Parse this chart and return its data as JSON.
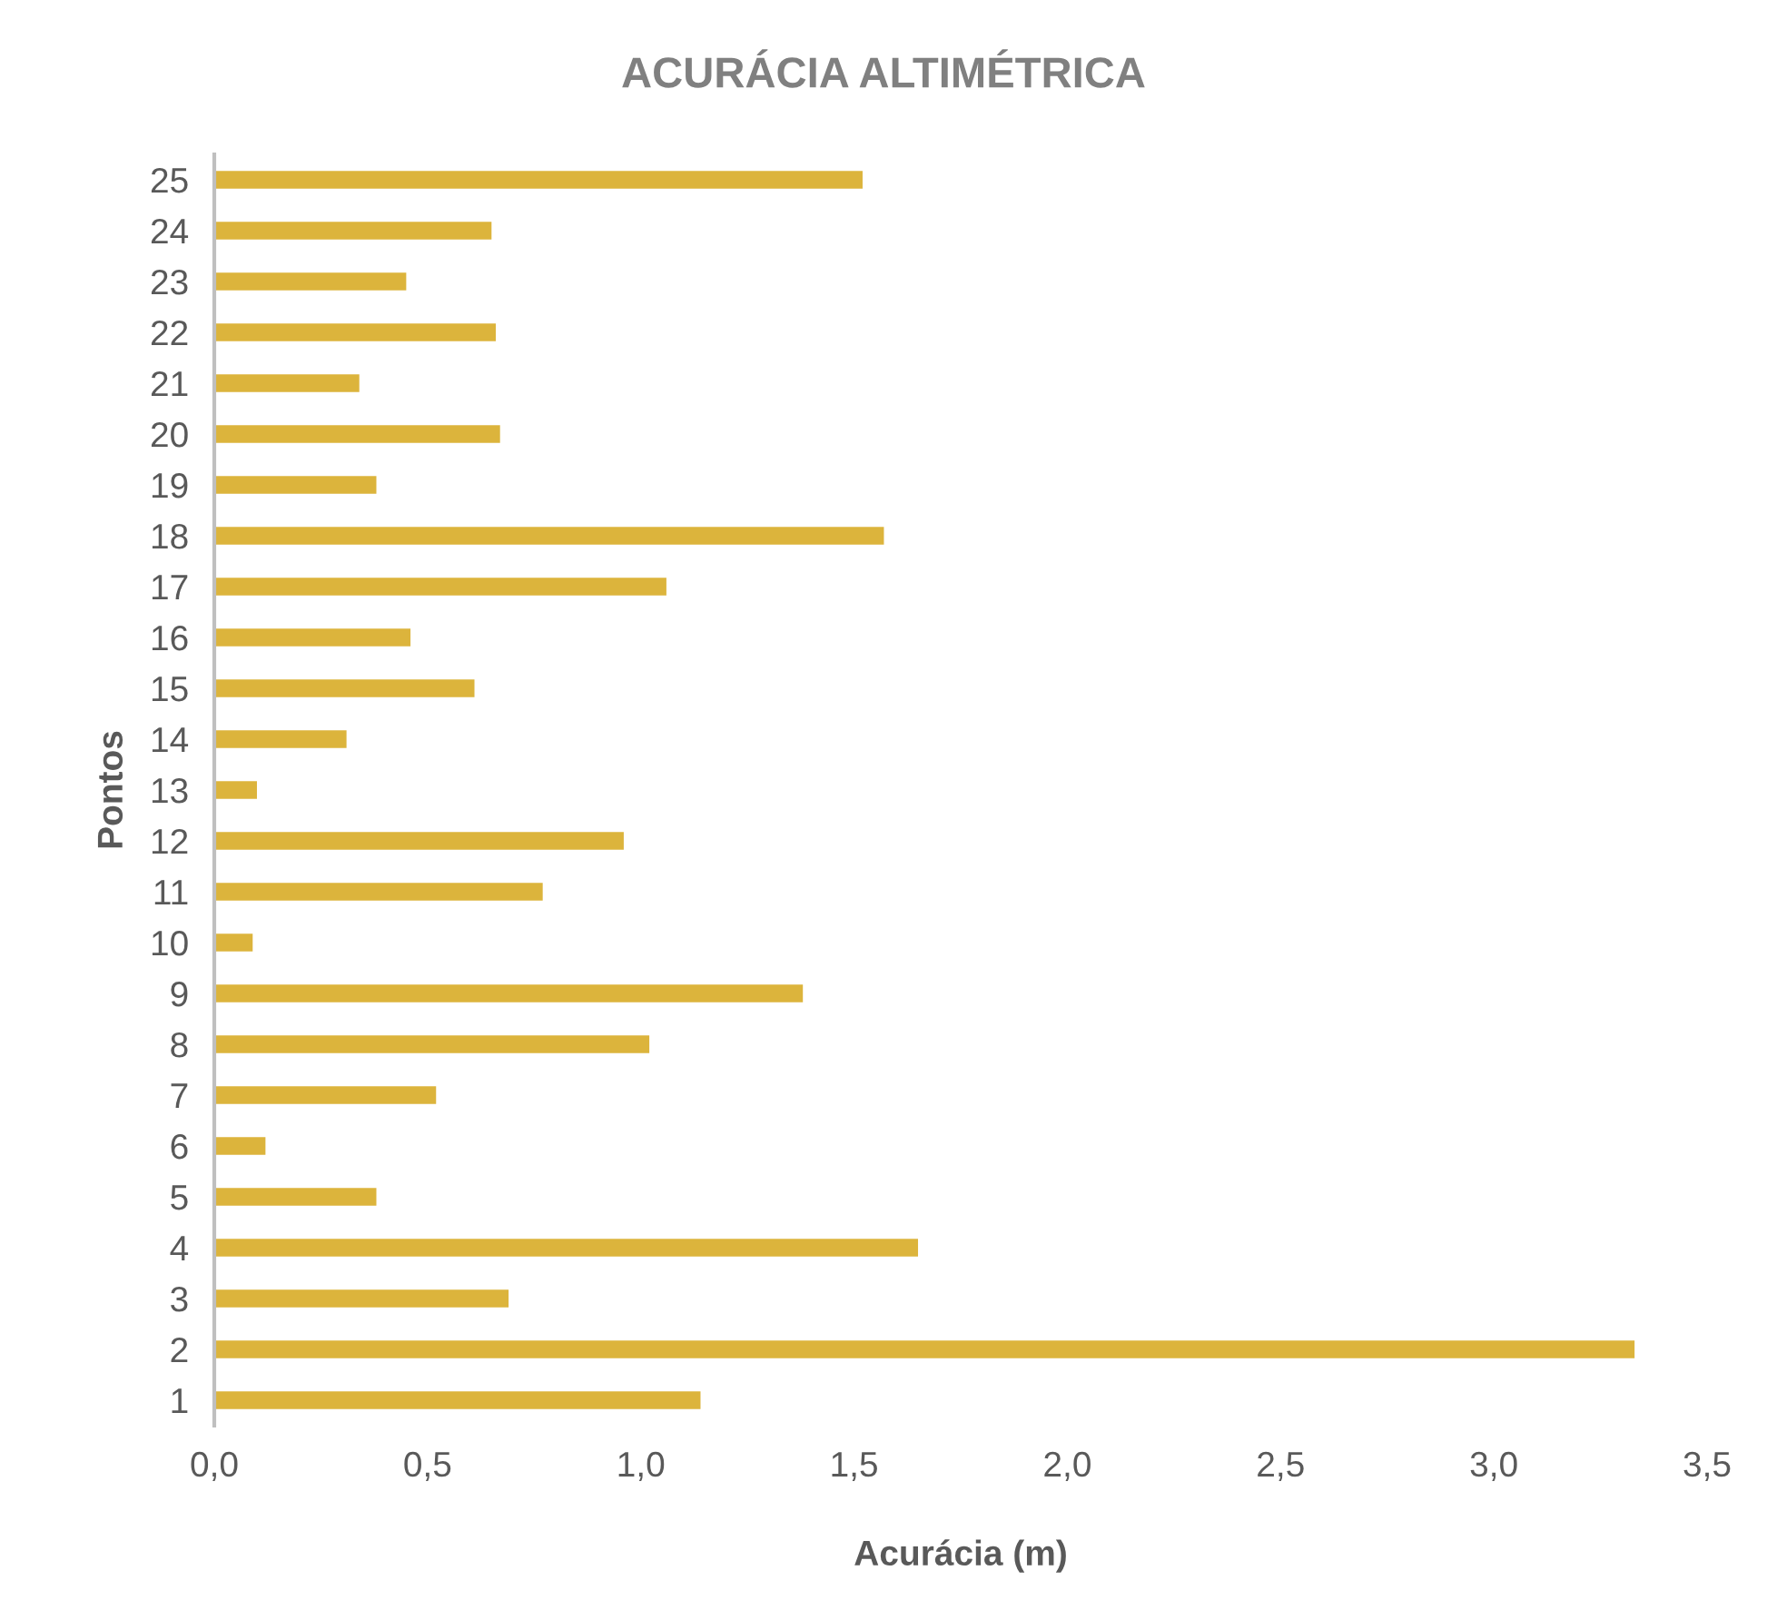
{
  "chart_data": {
    "type": "bar",
    "orientation": "horizontal",
    "title": "ACURÁCIA ALTIMÉTRICA",
    "xlabel": "Acurácia (m)",
    "ylabel": "Pontos",
    "categories": [
      "25",
      "24",
      "23",
      "22",
      "21",
      "20",
      "19",
      "18",
      "17",
      "16",
      "15",
      "14",
      "13",
      "12",
      "11",
      "10",
      "9",
      "8",
      "7",
      "6",
      "5",
      "4",
      "3",
      "2",
      "1"
    ],
    "values": [
      1.52,
      0.65,
      0.45,
      0.66,
      0.34,
      0.67,
      0.38,
      1.57,
      1.06,
      0.46,
      0.61,
      0.31,
      0.1,
      0.96,
      0.77,
      0.09,
      1.38,
      1.02,
      0.52,
      0.12,
      0.38,
      1.65,
      0.69,
      3.33,
      1.14
    ],
    "color": "#dcb43c",
    "xlim": [
      0,
      3.5
    ],
    "xticks": [
      {
        "value": 0,
        "label": "0,0"
      },
      {
        "value": 0.5,
        "label": "0,5"
      },
      {
        "value": 1,
        "label": "1,0"
      },
      {
        "value": 1.5,
        "label": "1,5"
      },
      {
        "value": 2,
        "label": "2,0"
      },
      {
        "value": 2.5,
        "label": "2,5"
      },
      {
        "value": 3,
        "label": "3,0"
      },
      {
        "value": 3.5,
        "label": "3,5"
      }
    ],
    "grid": false,
    "legend": false
  }
}
